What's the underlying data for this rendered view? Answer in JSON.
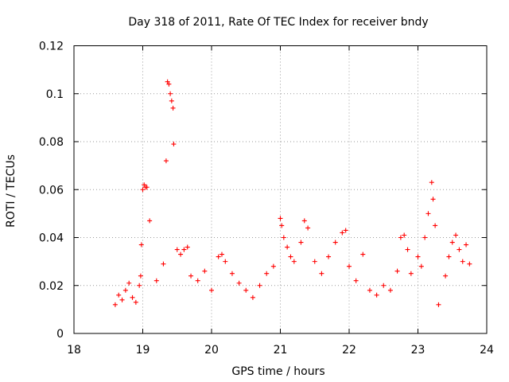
{
  "chart_data": {
    "type": "scatter",
    "title": "Day 318 of 2011, Rate Of TEC Index for receiver bndy",
    "xlabel": "GPS time / hours",
    "ylabel": "ROTI / TECUs",
    "xlim": [
      18,
      24
    ],
    "ylim": [
      0,
      0.12
    ],
    "xticks": [
      "18",
      "19",
      "20",
      "21",
      "22",
      "23",
      "24"
    ],
    "yticks": [
      "0",
      "0.02",
      "0.04",
      "0.06",
      "0.08",
      "0.1",
      "0.12"
    ],
    "grid": true,
    "marker": "+",
    "color": "#ff0000",
    "series": [
      {
        "name": "ROTI",
        "points": [
          [
            18.6,
            0.012
          ],
          [
            18.65,
            0.016
          ],
          [
            18.7,
            0.014
          ],
          [
            18.75,
            0.018
          ],
          [
            18.8,
            0.021
          ],
          [
            18.85,
            0.015
          ],
          [
            18.9,
            0.013
          ],
          [
            18.95,
            0.02
          ],
          [
            18.97,
            0.024
          ],
          [
            18.98,
            0.037
          ],
          [
            19.0,
            0.06
          ],
          [
            19.02,
            0.062
          ],
          [
            19.04,
            0.061
          ],
          [
            19.06,
            0.061
          ],
          [
            19.1,
            0.047
          ],
          [
            19.2,
            0.022
          ],
          [
            19.3,
            0.029
          ],
          [
            19.34,
            0.072
          ],
          [
            19.36,
            0.105
          ],
          [
            19.38,
            0.104
          ],
          [
            19.4,
            0.1
          ],
          [
            19.42,
            0.097
          ],
          [
            19.44,
            0.094
          ],
          [
            19.45,
            0.079
          ],
          [
            19.5,
            0.035
          ],
          [
            19.55,
            0.033
          ],
          [
            19.6,
            0.035
          ],
          [
            19.65,
            0.036
          ],
          [
            19.7,
            0.024
          ],
          [
            19.8,
            0.022
          ],
          [
            19.9,
            0.026
          ],
          [
            20.0,
            0.018
          ],
          [
            20.1,
            0.032
          ],
          [
            20.15,
            0.033
          ],
          [
            20.2,
            0.03
          ],
          [
            20.3,
            0.025
          ],
          [
            20.4,
            0.021
          ],
          [
            20.5,
            0.018
          ],
          [
            20.6,
            0.015
          ],
          [
            20.7,
            0.02
          ],
          [
            20.8,
            0.025
          ],
          [
            20.9,
            0.028
          ],
          [
            21.0,
            0.048
          ],
          [
            21.02,
            0.045
          ],
          [
            21.05,
            0.04
          ],
          [
            21.1,
            0.036
          ],
          [
            21.15,
            0.032
          ],
          [
            21.2,
            0.03
          ],
          [
            21.3,
            0.038
          ],
          [
            21.35,
            0.047
          ],
          [
            21.4,
            0.044
          ],
          [
            21.5,
            0.03
          ],
          [
            21.6,
            0.025
          ],
          [
            21.7,
            0.032
          ],
          [
            21.8,
            0.038
          ],
          [
            21.9,
            0.042
          ],
          [
            21.95,
            0.043
          ],
          [
            22.0,
            0.028
          ],
          [
            22.1,
            0.022
          ],
          [
            22.2,
            0.033
          ],
          [
            22.3,
            0.018
          ],
          [
            22.4,
            0.016
          ],
          [
            22.5,
            0.02
          ],
          [
            22.6,
            0.018
          ],
          [
            22.7,
            0.026
          ],
          [
            22.75,
            0.04
          ],
          [
            22.8,
            0.041
          ],
          [
            22.85,
            0.035
          ],
          [
            22.9,
            0.025
          ],
          [
            23.0,
            0.032
          ],
          [
            23.05,
            0.028
          ],
          [
            23.1,
            0.04
          ],
          [
            23.15,
            0.05
          ],
          [
            23.2,
            0.063
          ],
          [
            23.22,
            0.056
          ],
          [
            23.25,
            0.045
          ],
          [
            23.3,
            0.012
          ],
          [
            23.4,
            0.024
          ],
          [
            23.45,
            0.032
          ],
          [
            23.5,
            0.038
          ],
          [
            23.55,
            0.041
          ],
          [
            23.6,
            0.035
          ],
          [
            23.65,
            0.03
          ],
          [
            23.7,
            0.037
          ],
          [
            23.75,
            0.029
          ]
        ]
      }
    ]
  }
}
